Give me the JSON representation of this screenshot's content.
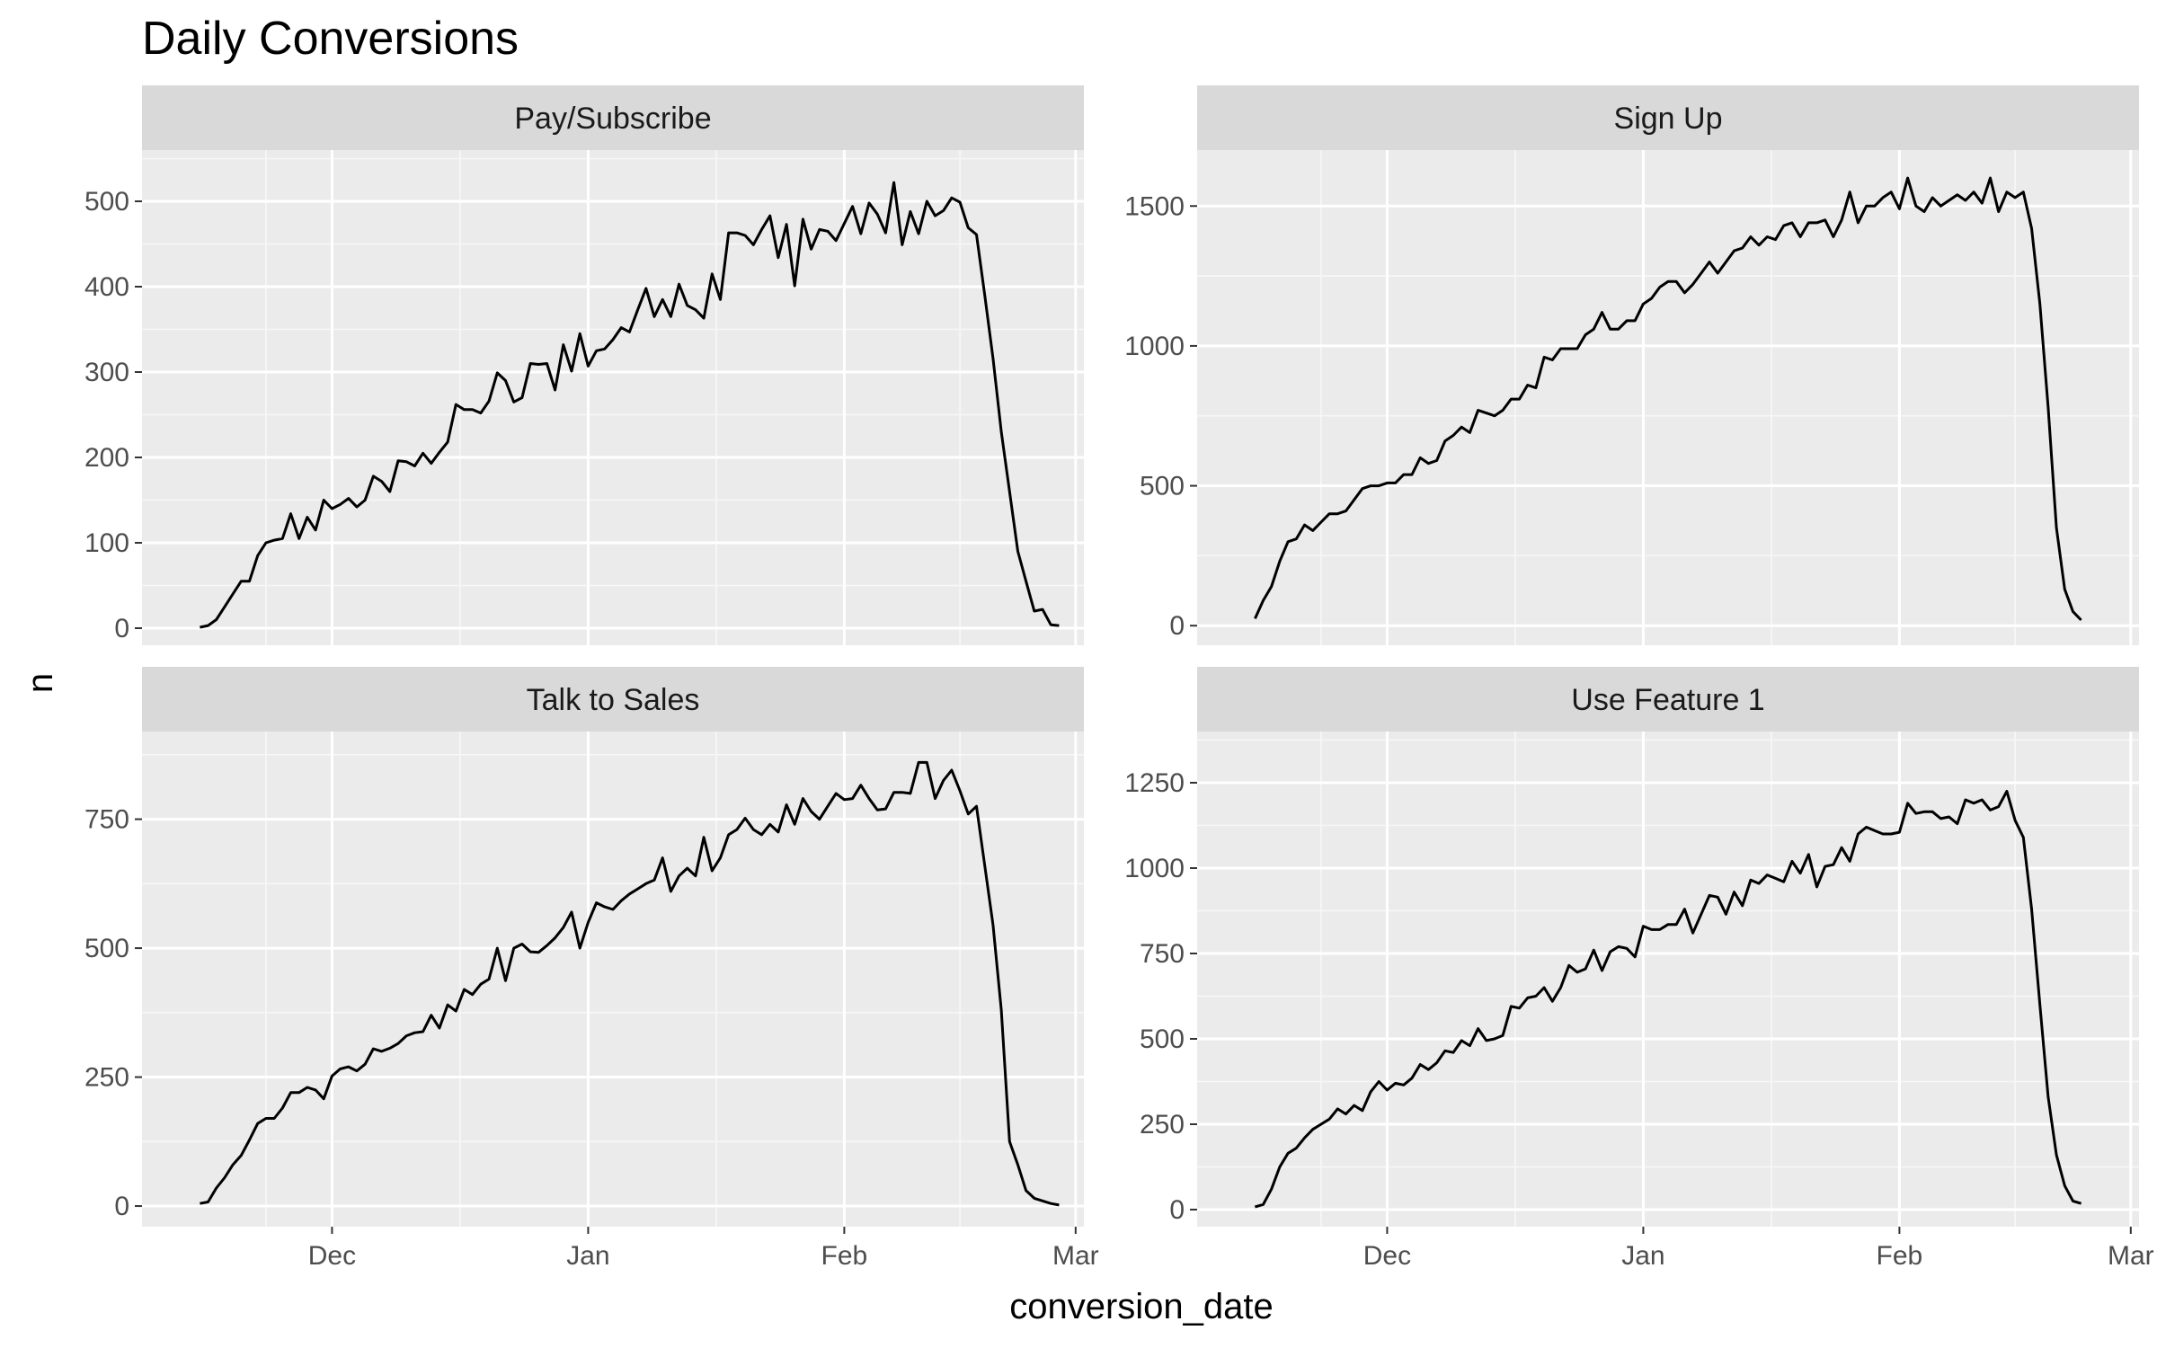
{
  "chart_data": {
    "type": "line",
    "title": "Daily Conversions",
    "xlabel": "conversion_date",
    "ylabel": "n",
    "x_ticks": [
      {
        "label": "Dec",
        "date": "2018-12-01"
      },
      {
        "label": "Jan",
        "date": "2019-01-01"
      },
      {
        "label": "Feb",
        "date": "2019-02-01"
      },
      {
        "label": "Mar",
        "date": "2019-03-01"
      }
    ],
    "xlim": [
      "2018-11-08",
      "2019-03-02"
    ],
    "x_start": "2018-11-15",
    "grid": true,
    "facets": [
      {
        "name": "Pay/Subscribe",
        "ylim": [
          -20,
          560
        ],
        "y_ticks": [
          0,
          100,
          200,
          300,
          400,
          500
        ],
        "values": [
          1,
          3,
          10,
          25,
          40,
          55,
          55,
          85,
          100,
          103,
          105,
          134,
          105,
          130,
          115,
          150,
          140,
          145,
          152,
          142,
          150,
          178,
          172,
          160,
          196,
          195,
          190,
          205,
          193,
          206,
          218,
          262,
          256,
          256,
          252,
          266,
          299,
          290,
          265,
          270,
          310,
          309,
          310,
          279,
          332,
          301,
          345,
          307,
          325,
          327,
          338,
          352,
          347,
          373,
          398,
          365,
          385,
          365,
          403,
          378,
          373,
          363,
          415,
          385,
          463,
          463,
          460,
          449,
          467,
          483,
          434,
          473,
          401,
          479,
          444,
          467,
          465,
          454,
          474,
          494,
          462,
          498,
          485,
          463,
          522,
          449,
          488,
          462,
          500,
          483,
          489,
          504,
          499,
          469,
          461,
          390,
          316,
          230,
          160,
          90,
          55,
          20,
          22,
          4,
          3
        ]
      },
      {
        "name": "Sign Up",
        "ylim": [
          -70,
          1700
        ],
        "y_ticks": [
          0,
          500,
          1000,
          1500
        ],
        "values": [
          25,
          90,
          140,
          230,
          300,
          310,
          360,
          340,
          370,
          400,
          400,
          410,
          450,
          490,
          500,
          500,
          510,
          510,
          540,
          540,
          600,
          580,
          590,
          660,
          680,
          710,
          690,
          770,
          760,
          750,
          770,
          810,
          810,
          860,
          850,
          960,
          950,
          990,
          990,
          990,
          1040,
          1060,
          1120,
          1060,
          1060,
          1090,
          1090,
          1150,
          1170,
          1210,
          1230,
          1230,
          1190,
          1220,
          1260,
          1300,
          1260,
          1300,
          1340,
          1350,
          1390,
          1360,
          1390,
          1380,
          1430,
          1440,
          1390,
          1440,
          1440,
          1450,
          1390,
          1450,
          1550,
          1440,
          1500,
          1500,
          1530,
          1550,
          1490,
          1600,
          1500,
          1480,
          1530,
          1500,
          1520,
          1540,
          1520,
          1550,
          1510,
          1600,
          1480,
          1550,
          1530,
          1550,
          1420,
          1150,
          780,
          350,
          130,
          50,
          20
        ]
      },
      {
        "name": "Talk to Sales",
        "ylim": [
          -40,
          920
        ],
        "y_ticks": [
          0,
          250,
          500,
          750
        ],
        "values": [
          5,
          8,
          35,
          55,
          80,
          98,
          128,
          160,
          170,
          170,
          190,
          220,
          220,
          230,
          225,
          208,
          252,
          266,
          270,
          262,
          275,
          305,
          300,
          306,
          315,
          330,
          336,
          338,
          370,
          345,
          390,
          378,
          420,
          410,
          430,
          440,
          500,
          437,
          500,
          508,
          493,
          492,
          505,
          520,
          540,
          570,
          500,
          550,
          588,
          580,
          575,
          592,
          605,
          615,
          625,
          632,
          675,
          610,
          640,
          655,
          640,
          715,
          650,
          675,
          720,
          730,
          752,
          730,
          720,
          740,
          725,
          778,
          740,
          790,
          765,
          750,
          775,
          800,
          788,
          790,
          816,
          790,
          768,
          770,
          802,
          802,
          800,
          860,
          860,
          790,
          825,
          845,
          805,
          760,
          775,
          660,
          545,
          380,
          125,
          80,
          30,
          15,
          10,
          5,
          2
        ]
      },
      {
        "name": "Use Feature 1",
        "ylim": [
          -50,
          1400
        ],
        "y_ticks": [
          0,
          250,
          500,
          750,
          1000,
          1250
        ],
        "values": [
          8,
          15,
          60,
          125,
          165,
          180,
          210,
          235,
          250,
          265,
          295,
          280,
          305,
          290,
          345,
          375,
          350,
          370,
          365,
          385,
          425,
          410,
          430,
          465,
          460,
          495,
          480,
          530,
          495,
          500,
          510,
          595,
          590,
          620,
          625,
          650,
          610,
          650,
          715,
          695,
          705,
          760,
          700,
          755,
          770,
          765,
          740,
          830,
          820,
          820,
          835,
          835,
          880,
          810,
          865,
          920,
          915,
          865,
          930,
          890,
          965,
          955,
          980,
          970,
          960,
          1020,
          985,
          1040,
          945,
          1005,
          1010,
          1060,
          1020,
          1100,
          1120,
          1110,
          1100,
          1100,
          1105,
          1190,
          1160,
          1165,
          1165,
          1145,
          1150,
          1130,
          1200,
          1190,
          1200,
          1170,
          1180,
          1225,
          1140,
          1090,
          880,
          600,
          330,
          160,
          70,
          25,
          18
        ]
      }
    ]
  }
}
